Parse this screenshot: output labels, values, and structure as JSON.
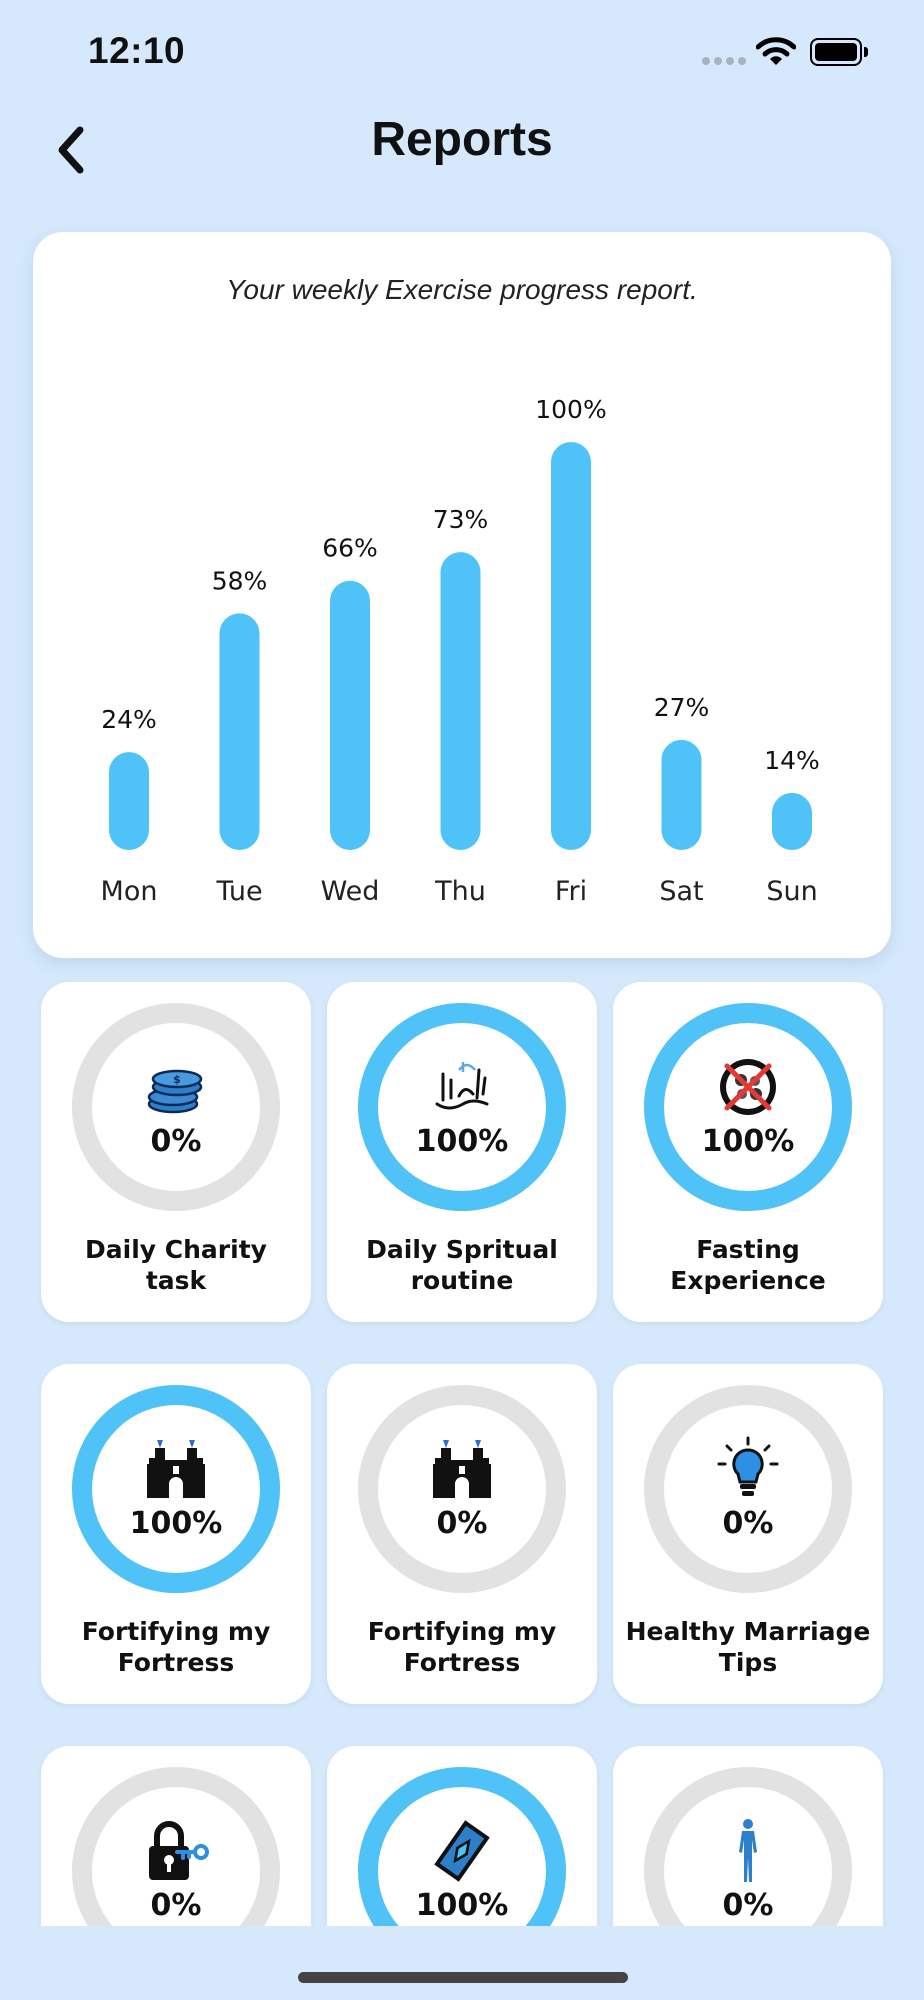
{
  "status_bar": {
    "time": "12:10"
  },
  "header": {
    "title": "Reports"
  },
  "chart_card": {
    "subtitle": "Your weekly Exercise progress report."
  },
  "chart_data": {
    "type": "bar",
    "title": "Your weekly Exercise progress report.",
    "categories": [
      "Mon",
      "Tue",
      "Wed",
      "Thu",
      "Fri",
      "Sat",
      "Sun"
    ],
    "values": [
      24,
      58,
      66,
      73,
      100,
      27,
      14
    ],
    "value_labels": [
      "24%",
      "58%",
      "66%",
      "73%",
      "100%",
      "27%",
      "14%"
    ],
    "ylim": [
      0,
      100
    ],
    "grid": false,
    "bar_color": "#4fc3f7"
  },
  "colors": {
    "accent": "#4fc3f7",
    "ring_track": "#e2e2e2",
    "background": "#d6e9fc"
  },
  "tasks": [
    {
      "label": "Daily Charity\ntask",
      "percent_text": "0%",
      "progress": 0,
      "icon": "coins-icon"
    },
    {
      "label": "Daily Spritual\nroutine",
      "percent_text": "100%",
      "progress": 1,
      "icon": "arabic-calligraphy-icon"
    },
    {
      "label": "Fasting\nExperience",
      "percent_text": "100%",
      "progress": 1,
      "icon": "no-food-icon"
    },
    {
      "label": "Fortifying my\nFortress",
      "percent_text": "100%",
      "progress": 1,
      "icon": "castle-icon"
    },
    {
      "label": "Fortifying my\nFortress",
      "percent_text": "0%",
      "progress": 0,
      "icon": "castle-icon"
    },
    {
      "label": "Healthy Marriage\nTips",
      "percent_text": "0%",
      "progress": 0,
      "icon": "lightbulb-icon"
    },
    {
      "label": "",
      "percent_text": "0%",
      "progress": 0,
      "icon": "lock-key-icon"
    },
    {
      "label": "",
      "percent_text": "100%",
      "progress": 1,
      "icon": "prayer-mat-icon"
    },
    {
      "label": "",
      "percent_text": "0%",
      "progress": 0,
      "icon": "human-figure-icon"
    }
  ]
}
